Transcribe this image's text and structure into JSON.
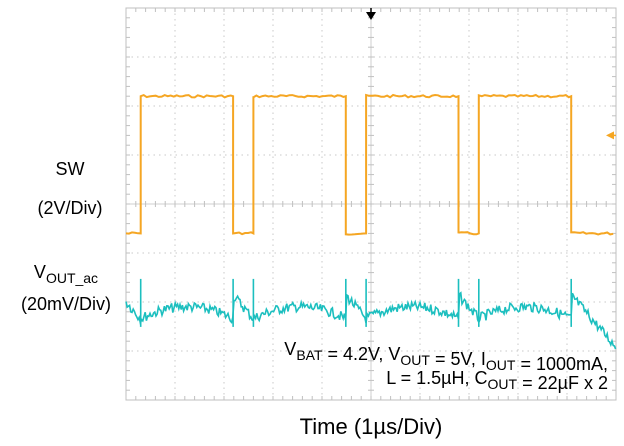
{
  "chart_data": {
    "type": "line",
    "title": "",
    "xlabel": "Time (1µs/Div)",
    "x_divisions": 10,
    "y_divisions": 8,
    "grid": true,
    "series": [
      {
        "name": "SW",
        "scale": "(2V/Div)",
        "color": "#F5A623",
        "waveform": "square",
        "period_div": 2.3,
        "duty_cycle": 0.82,
        "high_level_div": 6.2,
        "low_level_div": 3.4,
        "rising_edges_div": [
          0.3,
          2.6,
          4.9,
          7.2
        ]
      },
      {
        "name_main": "V",
        "name_sub": "OUT_ac",
        "scale": "(20mV/Div)",
        "color": "#1CBFBF",
        "waveform": "ripple",
        "center_div": 1.9,
        "peak_to_peak_div": 0.6
      }
    ],
    "markers": {
      "trigger_arrow": "top-center",
      "level_arrow": "right"
    },
    "conditions": {
      "line1": [
        {
          "t": "V",
          "s": "BAT"
        },
        {
          "t": " = 4.2V, V"
        },
        {
          "s": "OUT"
        },
        {
          "t": " = 5V, I"
        },
        {
          "s": "OUT"
        },
        {
          "t": " = 1000mA,"
        }
      ],
      "line2": [
        {
          "t": "L = 1.5µH, C"
        },
        {
          "s": "OUT"
        },
        {
          "t": " = 22µF x 2"
        }
      ]
    }
  }
}
